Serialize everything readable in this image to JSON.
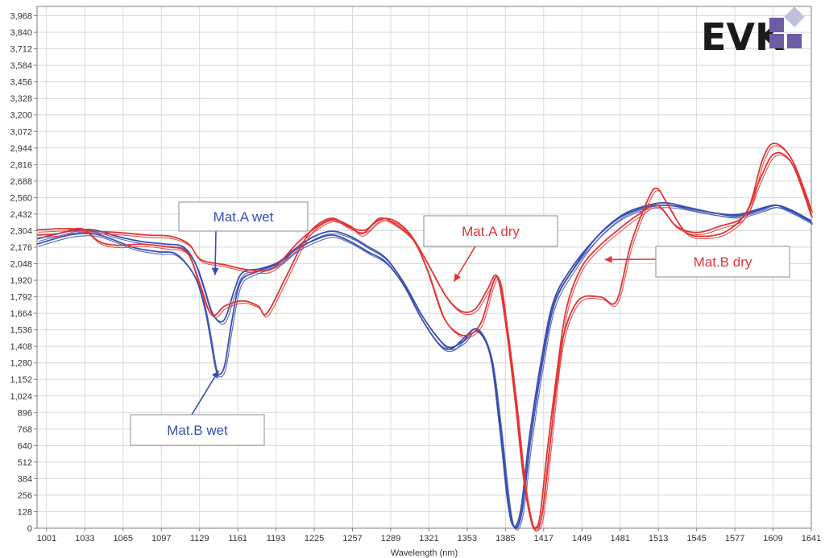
{
  "chart_data": {
    "type": "line",
    "title": "",
    "xlabel": "Wavelength (nm)",
    "ylabel": "",
    "xlim": [
      993,
      1641
    ],
    "ylim": [
      0,
      4040
    ],
    "grid": true,
    "legend": "none",
    "x_ticks": [
      "1001",
      "1033",
      "1065",
      "1097",
      "1129",
      "1161",
      "1193",
      "1225",
      "1257",
      "1289",
      "1321",
      "1353",
      "1385",
      "1417",
      "1449",
      "1481",
      "1513",
      "1545",
      "1577",
      "1609",
      "1641"
    ],
    "y_ticks": [
      "0",
      "128",
      "256",
      "384",
      "512",
      "640",
      "768",
      "896",
      "1,024",
      "1,152",
      "1,280",
      "1,408",
      "1,536",
      "1,664",
      "1,792",
      "1,920",
      "2,048",
      "2,176",
      "2,304",
      "2,432",
      "2,560",
      "2,688",
      "2,816",
      "2,944",
      "3,072",
      "3,200",
      "3,328",
      "3,456",
      "3,584",
      "3,712",
      "3,840",
      "3,968"
    ],
    "series": [
      {
        "name": "Mat.A wet",
        "color": "#3a4fb0",
        "points": [
          [
            993,
            2240
          ],
          [
            1020,
            2300
          ],
          [
            1040,
            2310
          ],
          [
            1060,
            2260
          ],
          [
            1080,
            2220
          ],
          [
            1100,
            2200
          ],
          [
            1115,
            2180
          ],
          [
            1125,
            2060
          ],
          [
            1132,
            1880
          ],
          [
            1138,
            1700
          ],
          [
            1143,
            1620
          ],
          [
            1148,
            1600
          ],
          [
            1152,
            1660
          ],
          [
            1158,
            1840
          ],
          [
            1165,
            1980
          ],
          [
            1180,
            2010
          ],
          [
            1195,
            2060
          ],
          [
            1210,
            2170
          ],
          [
            1225,
            2260
          ],
          [
            1240,
            2300
          ],
          [
            1255,
            2260
          ],
          [
            1270,
            2180
          ],
          [
            1285,
            2090
          ],
          [
            1300,
            1900
          ],
          [
            1315,
            1650
          ],
          [
            1328,
            1480
          ],
          [
            1338,
            1400
          ],
          [
            1350,
            1450
          ],
          [
            1360,
            1540
          ],
          [
            1372,
            1350
          ],
          [
            1380,
            800
          ],
          [
            1387,
            200
          ],
          [
            1392,
            15
          ],
          [
            1398,
            150
          ],
          [
            1405,
            700
          ],
          [
            1415,
            1300
          ],
          [
            1425,
            1750
          ],
          [
            1440,
            2010
          ],
          [
            1460,
            2240
          ],
          [
            1480,
            2400
          ],
          [
            1500,
            2480
          ],
          [
            1515,
            2500
          ],
          [
            1530,
            2490
          ],
          [
            1560,
            2440
          ],
          [
            1580,
            2430
          ],
          [
            1600,
            2480
          ],
          [
            1612,
            2500
          ],
          [
            1625,
            2450
          ],
          [
            1641,
            2370
          ]
        ]
      },
      {
        "name": "Mat.B wet",
        "color": "#3a4fb0",
        "points": [
          [
            993,
            2200
          ],
          [
            1020,
            2270
          ],
          [
            1040,
            2280
          ],
          [
            1055,
            2240
          ],
          [
            1075,
            2170
          ],
          [
            1095,
            2140
          ],
          [
            1110,
            2120
          ],
          [
            1125,
            1950
          ],
          [
            1133,
            1720
          ],
          [
            1138,
            1480
          ],
          [
            1142,
            1260
          ],
          [
            1145,
            1190
          ],
          [
            1150,
            1260
          ],
          [
            1156,
            1600
          ],
          [
            1163,
            1900
          ],
          [
            1175,
            1980
          ],
          [
            1195,
            2050
          ],
          [
            1210,
            2160
          ],
          [
            1225,
            2230
          ],
          [
            1240,
            2270
          ],
          [
            1255,
            2220
          ],
          [
            1270,
            2140
          ],
          [
            1285,
            2060
          ],
          [
            1300,
            1880
          ],
          [
            1315,
            1620
          ],
          [
            1330,
            1420
          ],
          [
            1340,
            1390
          ],
          [
            1350,
            1470
          ],
          [
            1362,
            1540
          ],
          [
            1373,
            1320
          ],
          [
            1381,
            760
          ],
          [
            1388,
            180
          ],
          [
            1393,
            5
          ],
          [
            1399,
            140
          ],
          [
            1406,
            680
          ],
          [
            1416,
            1290
          ],
          [
            1426,
            1740
          ],
          [
            1442,
            2010
          ],
          [
            1462,
            2260
          ],
          [
            1482,
            2420
          ],
          [
            1500,
            2490
          ],
          [
            1518,
            2520
          ],
          [
            1535,
            2490
          ],
          [
            1560,
            2440
          ],
          [
            1580,
            2420
          ],
          [
            1600,
            2470
          ],
          [
            1612,
            2500
          ],
          [
            1625,
            2460
          ],
          [
            1641,
            2380
          ]
        ]
      },
      {
        "name": "Mat.A dry",
        "color": "#e23434",
        "points": [
          [
            993,
            2310
          ],
          [
            1020,
            2320
          ],
          [
            1040,
            2300
          ],
          [
            1060,
            2290
          ],
          [
            1085,
            2270
          ],
          [
            1105,
            2260
          ],
          [
            1120,
            2200
          ],
          [
            1130,
            2080
          ],
          [
            1150,
            2040
          ],
          [
            1170,
            2000
          ],
          [
            1190,
            2010
          ],
          [
            1210,
            2200
          ],
          [
            1225,
            2320
          ],
          [
            1240,
            2390
          ],
          [
            1255,
            2340
          ],
          [
            1265,
            2280
          ],
          [
            1278,
            2380
          ],
          [
            1290,
            2390
          ],
          [
            1305,
            2280
          ],
          [
            1320,
            2050
          ],
          [
            1335,
            1800
          ],
          [
            1348,
            1680
          ],
          [
            1360,
            1700
          ],
          [
            1370,
            1850
          ],
          [
            1378,
            1950
          ],
          [
            1385,
            1600
          ],
          [
            1393,
            1000
          ],
          [
            1400,
            400
          ],
          [
            1406,
            80
          ],
          [
            1410,
            5
          ],
          [
            1414,
            100
          ],
          [
            1420,
            600
          ],
          [
            1428,
            1200
          ],
          [
            1436,
            1700
          ],
          [
            1448,
            2010
          ],
          [
            1462,
            2170
          ],
          [
            1478,
            2300
          ],
          [
            1495,
            2420
          ],
          [
            1512,
            2500
          ],
          [
            1528,
            2340
          ],
          [
            1545,
            2290
          ],
          [
            1565,
            2340
          ],
          [
            1585,
            2420
          ],
          [
            1598,
            2700
          ],
          [
            1610,
            2900
          ],
          [
            1625,
            2820
          ],
          [
            1641,
            2420
          ]
        ]
      },
      {
        "name": "Mat.B dry",
        "color": "#e23434",
        "points": [
          [
            993,
            2270
          ],
          [
            1010,
            2280
          ],
          [
            1030,
            2320
          ],
          [
            1045,
            2220
          ],
          [
            1060,
            2190
          ],
          [
            1080,
            2200
          ],
          [
            1100,
            2180
          ],
          [
            1118,
            2140
          ],
          [
            1128,
            1920
          ],
          [
            1136,
            1700
          ],
          [
            1142,
            1650
          ],
          [
            1150,
            1720
          ],
          [
            1165,
            1760
          ],
          [
            1178,
            1720
          ],
          [
            1185,
            1660
          ],
          [
            1200,
            1920
          ],
          [
            1215,
            2200
          ],
          [
            1225,
            2330
          ],
          [
            1240,
            2400
          ],
          [
            1255,
            2330
          ],
          [
            1268,
            2310
          ],
          [
            1280,
            2400
          ],
          [
            1292,
            2360
          ],
          [
            1308,
            2230
          ],
          [
            1320,
            1990
          ],
          [
            1333,
            1640
          ],
          [
            1345,
            1510
          ],
          [
            1355,
            1500
          ],
          [
            1365,
            1600
          ],
          [
            1378,
            1950
          ],
          [
            1386,
            1550
          ],
          [
            1394,
            950
          ],
          [
            1401,
            350
          ],
          [
            1407,
            40
          ],
          [
            1411,
            0
          ],
          [
            1416,
            120
          ],
          [
            1423,
            700
          ],
          [
            1430,
            1300
          ],
          [
            1437,
            1600
          ],
          [
            1448,
            1780
          ],
          [
            1465,
            1790
          ],
          [
            1478,
            1760
          ],
          [
            1490,
            2200
          ],
          [
            1505,
            2560
          ],
          [
            1512,
            2630
          ],
          [
            1520,
            2520
          ],
          [
            1535,
            2300
          ],
          [
            1550,
            2260
          ],
          [
            1570,
            2300
          ],
          [
            1588,
            2470
          ],
          [
            1600,
            2850
          ],
          [
            1610,
            2980
          ],
          [
            1625,
            2850
          ],
          [
            1641,
            2460
          ]
        ]
      }
    ],
    "annotations": [
      {
        "text": "Mat.A wet",
        "color": "#3a4fb0",
        "target": [
          1142,
          1960
        ]
      },
      {
        "text": "Mat.B wet",
        "color": "#3a4fb0",
        "target": [
          1145,
          1220
        ]
      },
      {
        "text": "Mat.A dry",
        "color": "#e23434",
        "target": [
          1342,
          1910
        ]
      },
      {
        "text": "Mat.B dry",
        "color": "#e23434",
        "target": [
          1468,
          2080
        ]
      }
    ]
  },
  "logo": {
    "text": "EVK",
    "square_colors": [
      "#6b5ca5",
      "#bfc0de"
    ]
  }
}
